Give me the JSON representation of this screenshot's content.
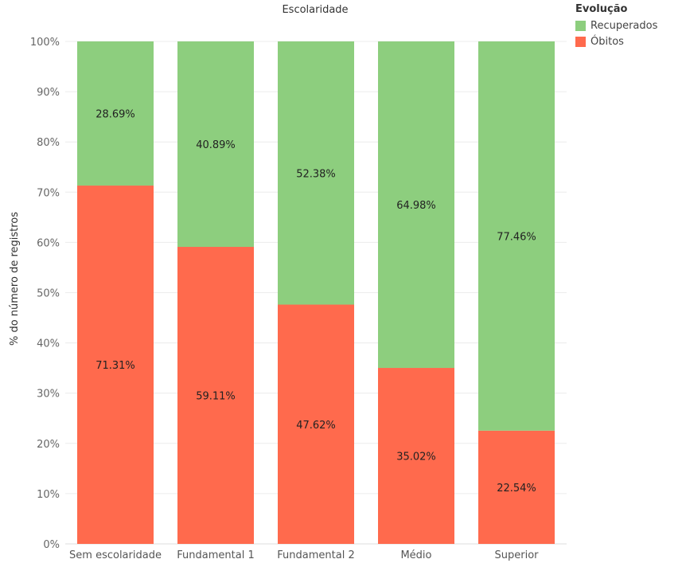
{
  "chart_data": {
    "type": "bar",
    "stacked": true,
    "title": "Escolaridade",
    "xlabel": "",
    "ylabel": "% do número de registros",
    "ylim": [
      0,
      100
    ],
    "yticks": [
      "0%",
      "10%",
      "20%",
      "30%",
      "40%",
      "50%",
      "60%",
      "70%",
      "80%",
      "90%",
      "100%"
    ],
    "categories": [
      "Sem escolaridade",
      "Fundamental 1",
      "Fundamental 2",
      "Médio",
      "Superior"
    ],
    "series": [
      {
        "name": "Óbitos",
        "color": "#ff6a4d",
        "values": [
          71.31,
          59.11,
          47.62,
          35.02,
          22.54
        ],
        "labels": [
          "71.31%",
          "59.11%",
          "47.62%",
          "35.02%",
          "22.54%"
        ]
      },
      {
        "name": "Recuperados",
        "color": "#8dce7e",
        "values": [
          28.69,
          40.89,
          52.38,
          64.98,
          77.46
        ],
        "labels": [
          "28.69%",
          "40.89%",
          "52.38%",
          "64.98%",
          "77.46%"
        ]
      }
    ],
    "grid": true,
    "legend_position": "top-right"
  },
  "legend": {
    "title": "Evolução",
    "items": [
      {
        "label": "Recuperados",
        "color": "#8dce7e"
      },
      {
        "label": "Óbitos",
        "color": "#ff6a4d"
      }
    ]
  }
}
